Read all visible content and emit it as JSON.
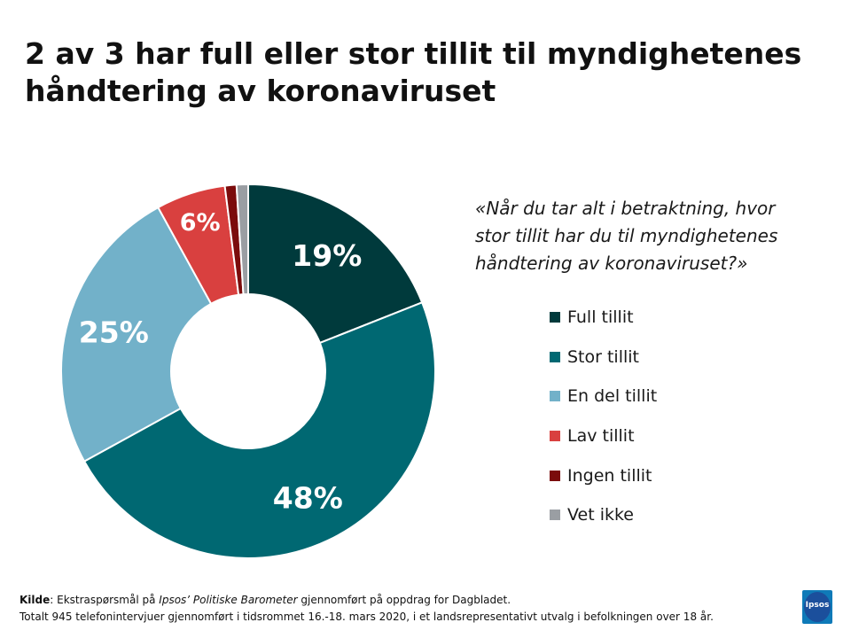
{
  "title": {
    "line1": "2 av 3 har full eller stor tillit til myndighetenes",
    "line2": "håndtering av koronaviruset"
  },
  "question": {
    "line1": "«Når du tar alt i betraktning, hvor",
    "line2": "stor tillit har du til myndighetenes",
    "line3": "håndtering av koronaviruset?»"
  },
  "chart_data": {
    "type": "pie",
    "donut": true,
    "categories": [
      "Full tillit",
      "Stor tillit",
      "En del tillit",
      "Lav tillit",
      "Ingen tillit",
      "Vet ikke"
    ],
    "values": [
      19,
      48,
      25,
      6,
      1,
      1
    ],
    "data_labels": [
      "19%",
      "48%",
      "25%",
      "6%",
      "",
      ""
    ],
    "colors": [
      "#003a3c",
      "#006872",
      "#72b1c9",
      "#d9403f",
      "#7b0c0c",
      "#9a9ea3"
    ],
    "legend_position": "right"
  },
  "footer": {
    "source_label": "Kilde",
    "source_pre": ": Ekstraspørsmål på ",
    "source_italic": "Ipsos’ Politiske Barometer",
    "source_post": " gjennomført på oppdrag for Dagbladet.",
    "line2": "Totalt 945  telefonintervjuer gjennomført i tidsrommet 16.-18. mars 2020,  i et landsrepresentativt utvalg i befolkningen over 18 år."
  },
  "logo": {
    "text": "Ipsos",
    "color": "#0f7ab8"
  }
}
